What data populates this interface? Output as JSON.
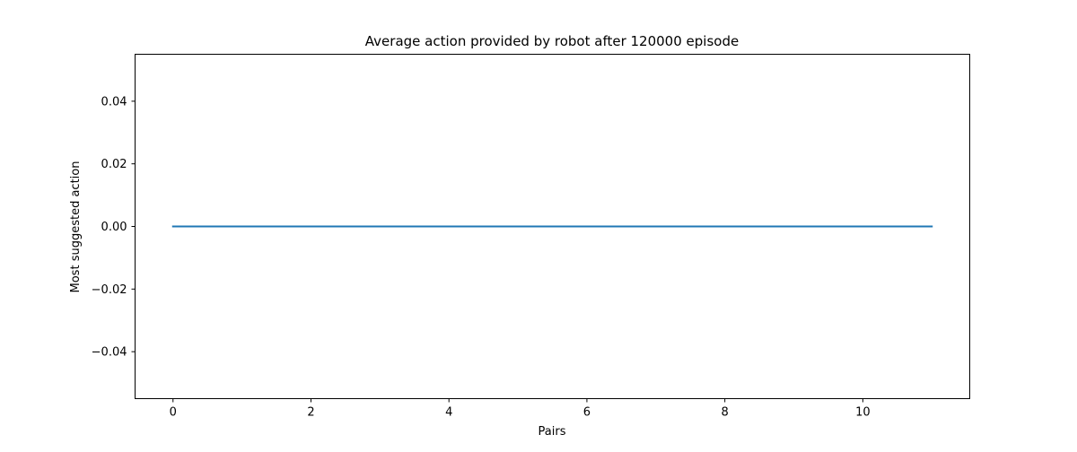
{
  "chart_data": {
    "type": "line",
    "title": "Average action provided by robot after 120000 episode",
    "xlabel": "Pairs",
    "ylabel": "Most suggested action",
    "xlim": [
      -0.55,
      11.55
    ],
    "ylim": [
      -0.055,
      0.055
    ],
    "x_ticks": [
      0,
      2,
      4,
      6,
      8,
      10
    ],
    "x_tick_labels": [
      "0",
      "2",
      "4",
      "6",
      "8",
      "10"
    ],
    "y_ticks": [
      -0.04,
      -0.02,
      0.0,
      0.02,
      0.04
    ],
    "y_tick_labels": [
      "−0.04",
      "−0.02",
      "0.00",
      "0.02",
      "0.04"
    ],
    "grid": false,
    "series": [
      {
        "color": "#1f77b4",
        "x": [
          0,
          1,
          2,
          3,
          4,
          5,
          6,
          7,
          8,
          9,
          10,
          11
        ],
        "y": [
          0,
          0,
          0,
          0,
          0,
          0,
          0,
          0,
          0,
          0,
          0,
          0
        ]
      }
    ]
  }
}
